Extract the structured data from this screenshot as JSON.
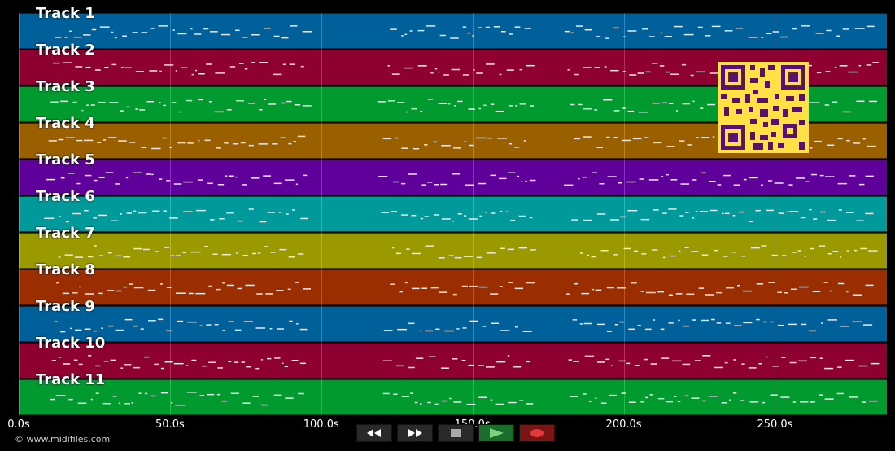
{
  "tracks": [
    {
      "label": "Track 1",
      "color": "#00609a"
    },
    {
      "label": "Track 2",
      "color": "#8e0030"
    },
    {
      "label": "Track 3",
      "color": "#009a2e"
    },
    {
      "label": "Track 4",
      "color": "#9a6000"
    },
    {
      "label": "Track 5",
      "color": "#60009a"
    },
    {
      "label": "Track 6",
      "color": "#009a9a"
    },
    {
      "label": "Track 7",
      "color": "#9a9a00"
    },
    {
      "label": "Track 8",
      "color": "#9a2e00"
    },
    {
      "label": "Track 9",
      "color": "#00609a"
    },
    {
      "label": "Track 10",
      "color": "#8e0030"
    },
    {
      "label": "Track 11",
      "color": "#009a2e"
    }
  ],
  "timeline": {
    "ticks": [
      {
        "label": "0.0s",
        "seconds": 0
      },
      {
        "label": "50.0s",
        "seconds": 50
      },
      {
        "label": "100.0s",
        "seconds": 100
      },
      {
        "label": "150.0s",
        "seconds": 150
      },
      {
        "label": "200.0s",
        "seconds": 200
      },
      {
        "label": "250.0s",
        "seconds": 250
      }
    ],
    "max_seconds": 287
  },
  "copyright": "© www.midifiles.com",
  "transport": {
    "rewind_icon": "rewind-icon",
    "fast_forward_icon": "fast-forward-icon",
    "stop_icon": "stop-icon",
    "play_icon": "play-icon",
    "record_icon": "record-icon"
  }
}
